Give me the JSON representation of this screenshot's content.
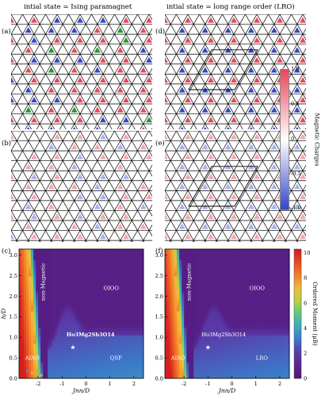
{
  "headers": {
    "left": "intial state = Ising paramagnet",
    "right": "intial state = long range order (LRO)"
  },
  "panel_labels": [
    "(a)",
    "(b)",
    "(c)",
    "(d)",
    "(e)",
    "(f)"
  ],
  "charge_colorbar": {
    "label": "Magnetic Charges",
    "ticks": [
      "1.0",
      "0.5",
      "0",
      "-0.5",
      "-1.0"
    ],
    "colors": {
      "positive": "#e8465a",
      "neutral": "#ffffff",
      "negative": "#3345c8",
      "green": "#1f9a2b"
    }
  },
  "moment_colorbar": {
    "label": "Ordered Moment (μB)",
    "ticks": [
      "10",
      "8",
      "6",
      "4",
      "2",
      "0"
    ]
  },
  "phase_plots": {
    "xlabel": "Jnn/D",
    "ylabel": "h/D",
    "xticks": [
      "-2",
      "-1",
      "0",
      "1",
      "2"
    ],
    "yticks": [
      "3.0",
      "2.5",
      "2.0",
      "1.5",
      "1.0",
      "0.5",
      "0.0"
    ],
    "c": {
      "regions": [
        "non-Magnetic",
        "OIOO",
        "AIAO",
        "QSF"
      ],
      "compound": "Ho3Mg2Sb3O14"
    },
    "f": {
      "regions": [
        "non-Magnetic",
        "OIOO",
        "AIAO",
        "LRO"
      ],
      "compound": "Ho3Mg2Sb3O14"
    }
  },
  "chart_data": [
    {
      "type": "heatmap",
      "panel": "(c)",
      "xlabel": "Jnn/D",
      "ylabel": "h/D",
      "xlim": [
        -2.8,
        2.4
      ],
      "ylim": [
        0.0,
        3.15
      ],
      "colorbar": "Ordered Moment (μB)",
      "zlim": [
        0,
        10
      ],
      "marked_point": {
        "label": "Ho3Mg2Sb3O14",
        "x": -0.55,
        "y": 0.75
      },
      "regions": [
        {
          "name": "AIAO",
          "moment": 10
        },
        {
          "name": "non-Magnetic",
          "moment": 0
        },
        {
          "name": "OIOO",
          "moment": 0.5
        },
        {
          "name": "QSF",
          "moment": 3
        }
      ]
    },
    {
      "type": "heatmap",
      "panel": "(f)",
      "xlabel": "Jnn/D",
      "ylabel": "h/D",
      "xlim": [
        -2.8,
        2.4
      ],
      "ylim": [
        0.0,
        3.15
      ],
      "colorbar": "Ordered Moment (μB)",
      "zlim": [
        0,
        10
      ],
      "marked_point": {
        "label": "Ho3Mg2Sb3O14",
        "x": -1.0,
        "y": 0.75
      },
      "regions": [
        {
          "name": "AIAO",
          "moment": 10
        },
        {
          "name": "non-Magnetic",
          "moment": 0
        },
        {
          "name": "OIOO",
          "moment": 0.5
        },
        {
          "name": "LRO",
          "moment": 3
        }
      ]
    }
  ]
}
